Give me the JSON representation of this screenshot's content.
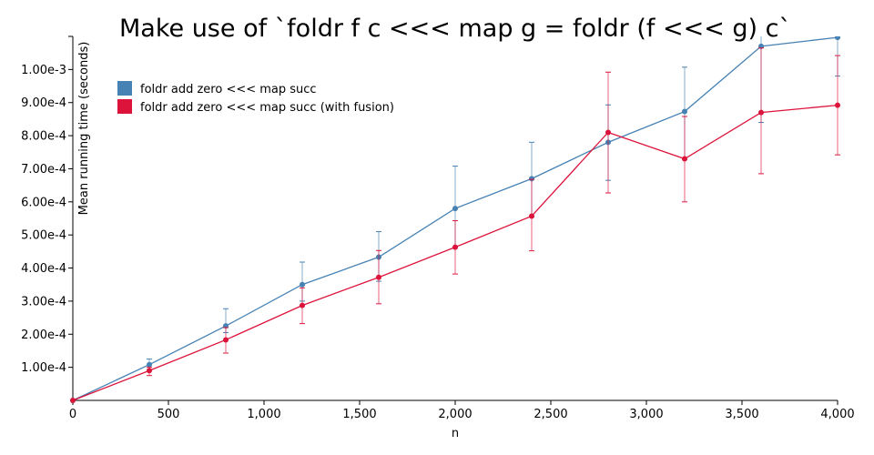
{
  "chart_data": {
    "type": "line",
    "title": "Make use of `foldr f c <<< map g = foldr (f <<< g) c`",
    "xlabel": "n",
    "ylabel": "Mean running time (seconds)",
    "xlim": [
      0,
      4000
    ],
    "ylim": [
      0,
      0.0011
    ],
    "x_ticks": [
      0,
      500,
      1000,
      1500,
      2000,
      2500,
      3000,
      3500,
      4000
    ],
    "x_tick_labels": [
      "0",
      "500",
      "1,000",
      "1,500",
      "2,000",
      "2,500",
      "3,000",
      "3,500",
      "4,000"
    ],
    "y_ticks": [
      0.0001,
      0.0002,
      0.0003,
      0.0004,
      0.0005,
      0.0006,
      0.0007,
      0.0008,
      0.0009,
      0.001
    ],
    "y_tick_labels": [
      "1.00e-4",
      "2.00e-4",
      "3.00e-4",
      "4.00e-4",
      "5.00e-4",
      "6.00e-4",
      "7.00e-4",
      "8.00e-4",
      "9.00e-4",
      "1.00e-3"
    ],
    "legend_position": "top-left",
    "grid": false,
    "x": [
      0,
      400,
      800,
      1200,
      1600,
      2000,
      2400,
      2800,
      3200,
      3600,
      4000
    ],
    "series": [
      {
        "name": "foldr add zero <<< map succ",
        "color": "#4682b4",
        "values": [
          0,
          0.000108,
          0.000225,
          0.00035,
          0.000433,
          0.00058,
          0.00067,
          0.00078,
          0.000873,
          0.00107,
          0.001097
        ],
        "err_low": [
          0,
          9.2e-05,
          0.000205,
          0.0003,
          0.00036,
          0.000462,
          0.000555,
          0.000665,
          0.000728,
          0.00084,
          0.00098
        ],
        "err_high": [
          0,
          0.000125,
          0.000277,
          0.000418,
          0.00051,
          0.000708,
          0.00078,
          0.000893,
          0.001007,
          0.0012,
          0.0012
        ]
      },
      {
        "name": "foldr add zero <<< map succ (with fusion)",
        "color": "#dc143c",
        "values": [
          0,
          9e-05,
          0.000183,
          0.000287,
          0.000372,
          0.000463,
          0.000557,
          0.00081,
          0.00073,
          0.00087,
          0.000892
        ],
        "err_low": [
          0,
          7.5e-05,
          0.000143,
          0.000232,
          0.000292,
          0.000382,
          0.000452,
          0.000627,
          0.0006,
          0.000685,
          0.000742
        ],
        "err_high": [
          0,
          0.0001,
          0.00022,
          0.00034,
          0.000453,
          0.000543,
          0.000668,
          0.000992,
          0.000858,
          0.001065,
          0.001042
        ]
      }
    ]
  }
}
